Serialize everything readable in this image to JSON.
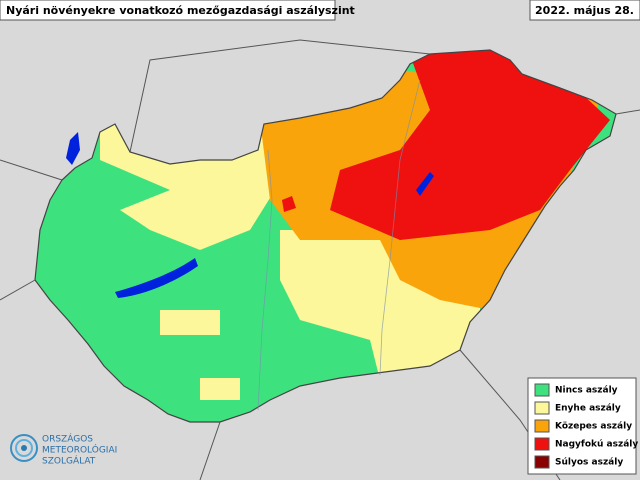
{
  "header": {
    "title": "Nyári növényekre vonatkozó mezőgazdasági aszályszint",
    "date": "2022. május 28."
  },
  "legend": {
    "items": [
      {
        "label": "Nincs aszály",
        "color": "#3de27f"
      },
      {
        "label": "Enyhe aszály",
        "color": "#fbf79a"
      },
      {
        "label": "Közepes aszály",
        "color": "#f9a40a"
      },
      {
        "label": "Nagyfokú aszály",
        "color": "#ef1010"
      },
      {
        "label": "Súlyos aszály",
        "color": "#8a0000"
      }
    ]
  },
  "logo": {
    "lines": [
      "ORSZÁGOS",
      "METEOROLÓGIAI",
      "SZOLGÁLAT"
    ]
  }
}
